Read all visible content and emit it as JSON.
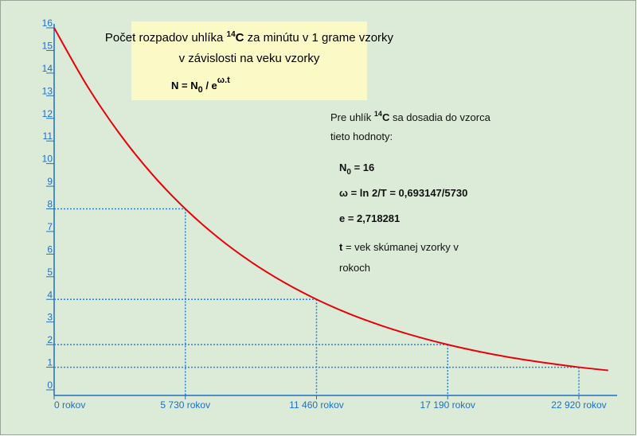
{
  "chart_data": {
    "type": "line",
    "title": {
      "line1": [
        "Počet rozpadov uhlíka ",
        "14",
        "C",
        "  za minútu v 1 grame vzorky"
      ],
      "line2": "v závislosti na veku vzorky"
    },
    "formula": [
      "N = N",
      "0",
      " / e",
      "ω.t"
    ],
    "notes": {
      "intro": [
        "Pre uhlík ",
        "14",
        "C",
        " sa dosadia do vzorca"
      ],
      "intro2": "tieto hodnoty:",
      "n0": [
        "N",
        "0",
        " = 16"
      ],
      "omega": "ω = ln 2/T = 0,693147/5730",
      "e": "e = 2,718281",
      "t": [
        "t",
        " = vek skúmanej vzorky v"
      ],
      "t2": "rokoch"
    },
    "x": [
      0,
      1432.5,
      2865,
      4297.5,
      5730,
      7162.5,
      8595,
      10027.5,
      11460,
      12892.5,
      14325,
      15757.5,
      17190,
      18622.5,
      20055,
      21487.5,
      22920,
      24200
    ],
    "series": [
      {
        "color": "#e8000b",
        "values": [
          16,
          13.45,
          11.31,
          9.51,
          8,
          6.73,
          5.66,
          4.76,
          4,
          3.36,
          2.83,
          2.38,
          2,
          1.68,
          1.41,
          1.19,
          1,
          0.86
        ]
      }
    ],
    "xlim": [
      0,
      24200
    ],
    "ylim": [
      0,
      16
    ],
    "xticks": [
      {
        "value": 0,
        "label": "0 rokov"
      },
      {
        "value": 5730,
        "label": "5 730 rokov"
      },
      {
        "value": 11460,
        "label": "11 460 rokov"
      },
      {
        "value": 17190,
        "label": "17 190 rokov"
      },
      {
        "value": 22920,
        "label": "22 920 rokov"
      }
    ],
    "yticks": [
      0,
      1,
      2,
      3,
      4,
      5,
      6,
      7,
      8,
      9,
      10,
      11,
      12,
      13,
      14,
      15,
      16
    ],
    "guide_color": "#2a7fd4"
  }
}
